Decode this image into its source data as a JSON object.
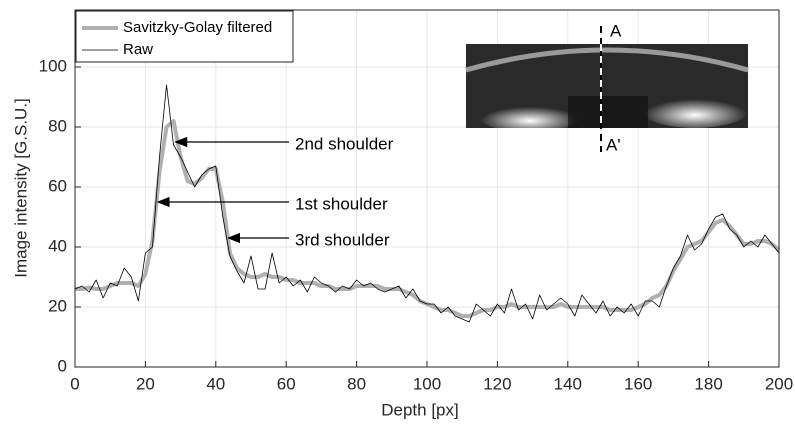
{
  "chart_data": {
    "type": "line",
    "xlabel": "Depth [px]",
    "ylabel": "Image intensity [G.S.U.]",
    "xlim": [
      0,
      200
    ],
    "xticks": [
      0,
      20,
      40,
      60,
      80,
      100,
      120,
      140,
      160,
      180,
      200
    ],
    "ylim": [
      0,
      119
    ],
    "yticks": [
      0,
      20,
      40,
      60,
      80,
      100
    ],
    "grid": true,
    "legend": "upper left",
    "x": [
      0,
      2,
      4,
      6,
      8,
      10,
      12,
      14,
      16,
      18,
      20,
      22,
      24,
      26,
      28,
      30,
      32,
      34,
      36,
      38,
      40,
      42,
      44,
      46,
      48,
      50,
      52,
      54,
      56,
      58,
      60,
      62,
      64,
      66,
      68,
      70,
      72,
      74,
      76,
      78,
      80,
      82,
      84,
      86,
      88,
      90,
      92,
      94,
      96,
      98,
      100,
      102,
      104,
      106,
      108,
      110,
      112,
      114,
      116,
      118,
      120,
      122,
      124,
      126,
      128,
      130,
      132,
      134,
      136,
      138,
      140,
      142,
      144,
      146,
      148,
      150,
      152,
      154,
      156,
      158,
      160,
      162,
      164,
      166,
      168,
      170,
      172,
      174,
      176,
      178,
      180,
      182,
      184,
      186,
      188,
      190,
      192,
      194,
      196,
      198,
      200
    ],
    "series": [
      {
        "name": "Savitzky-Golay filtered",
        "color": "#b0b0b0",
        "width": 4,
        "values": [
          26,
          26,
          26.5,
          26,
          26,
          27,
          28,
          28,
          28,
          27,
          31,
          42,
          65,
          80,
          82,
          70,
          62,
          61,
          63,
          66,
          66,
          55,
          38,
          33,
          31,
          30,
          30,
          31,
          30,
          30,
          29,
          29,
          28,
          28,
          28,
          27,
          27,
          26,
          26,
          26,
          27,
          27,
          27,
          27,
          26,
          26,
          26,
          25,
          24,
          22,
          21,
          20,
          19,
          19,
          18,
          17,
          17,
          18,
          19,
          19,
          20,
          20,
          21,
          20,
          20,
          20,
          20,
          20,
          20,
          21,
          20,
          20,
          20,
          20,
          20,
          20,
          19,
          19,
          19,
          19,
          20,
          21,
          23,
          24,
          27,
          32,
          36,
          40,
          41,
          42,
          45,
          48,
          49,
          47,
          44,
          41,
          41,
          42,
          42,
          41,
          39
        ]
      },
      {
        "name": "Raw",
        "color": "#000000",
        "width": 0.8,
        "values": [
          26,
          27,
          25,
          29,
          23,
          28,
          27,
          33,
          30,
          22,
          38,
          40,
          70,
          94,
          74,
          70,
          65,
          60,
          64,
          66,
          67,
          50,
          37,
          32,
          28,
          37,
          26,
          26,
          38,
          28,
          30,
          27,
          29,
          25,
          30,
          28,
          27,
          25,
          27,
          26,
          29,
          27,
          28,
          26,
          25,
          26,
          27,
          23,
          26,
          22,
          21,
          21,
          18,
          20,
          17,
          16,
          15,
          21,
          19,
          17,
          21,
          18,
          26,
          19,
          21,
          16,
          24,
          19,
          21,
          23,
          21,
          17,
          24,
          21,
          18,
          22,
          17,
          20,
          18,
          21,
          17,
          22,
          22,
          20,
          27,
          33,
          37,
          44,
          39,
          41,
          46,
          50,
          51,
          46,
          44,
          40,
          42,
          40,
          44,
          41,
          38
        ]
      }
    ],
    "annotations": [
      {
        "text": "2nd shoulder",
        "x": 28,
        "y": 75
      },
      {
        "text": "1st shoulder",
        "x": 23,
        "y": 55
      },
      {
        "text": "3rd shoulder",
        "x": 43,
        "y": 43
      }
    ],
    "inset": {
      "top_label": "A",
      "bottom_label": "A'"
    }
  }
}
